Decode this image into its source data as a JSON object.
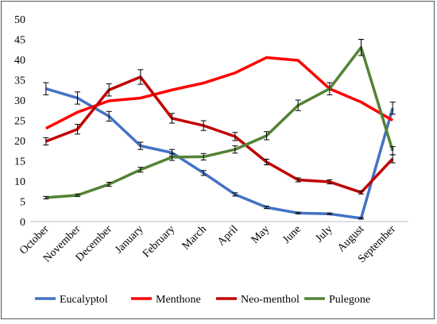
{
  "chart_data": {
    "type": "line",
    "title": "",
    "xlabel": "",
    "ylabel": "",
    "ylim": [
      0,
      50
    ],
    "yticks": [
      0,
      5,
      10,
      15,
      20,
      25,
      30,
      35,
      40,
      45,
      50
    ],
    "grid": false,
    "legend": "bottom",
    "categories": [
      "October",
      "November",
      "December",
      "January",
      "February",
      "March",
      "April",
      "May",
      "June",
      "July",
      "August",
      "September"
    ],
    "series": [
      {
        "name": "Eucalyptol",
        "color": "#4472c4",
        "values": [
          32.8,
          30.5,
          26.0,
          18.7,
          17.0,
          12.0,
          6.7,
          3.5,
          2.1,
          1.9,
          0.8,
          28.0
        ],
        "errors": [
          1.5,
          1.5,
          1.2,
          0.9,
          0.8,
          0.6,
          0.4,
          0.3,
          0.2,
          0.2,
          0.2,
          1.5
        ]
      },
      {
        "name": "Menthone",
        "color": "#ff0000",
        "values": [
          23.0,
          27.0,
          29.8,
          30.5,
          32.5,
          34.2,
          36.7,
          40.5,
          39.8,
          32.8,
          29.5,
          25.0
        ],
        "errors": []
      },
      {
        "name": "Neo-menthol",
        "color": "#c00000",
        "values": [
          19.8,
          22.8,
          32.5,
          35.7,
          25.5,
          23.7,
          21.0,
          14.7,
          10.3,
          9.8,
          7.2,
          15.5
        ],
        "errors": [
          0.9,
          1.2,
          1.5,
          1.8,
          1.2,
          1.2,
          1.0,
          0.7,
          0.5,
          0.5,
          0.4,
          1.0
        ]
      },
      {
        "name": "Pulegone",
        "color": "#548235",
        "values": [
          5.9,
          6.5,
          9.2,
          12.8,
          15.9,
          16.0,
          17.8,
          21.2,
          28.7,
          32.8,
          43.0,
          17.5
        ],
        "errors": [
          0.3,
          0.3,
          0.5,
          0.6,
          0.8,
          0.8,
          0.9,
          1.0,
          1.3,
          1.5,
          2.0,
          1.0
        ]
      }
    ]
  }
}
